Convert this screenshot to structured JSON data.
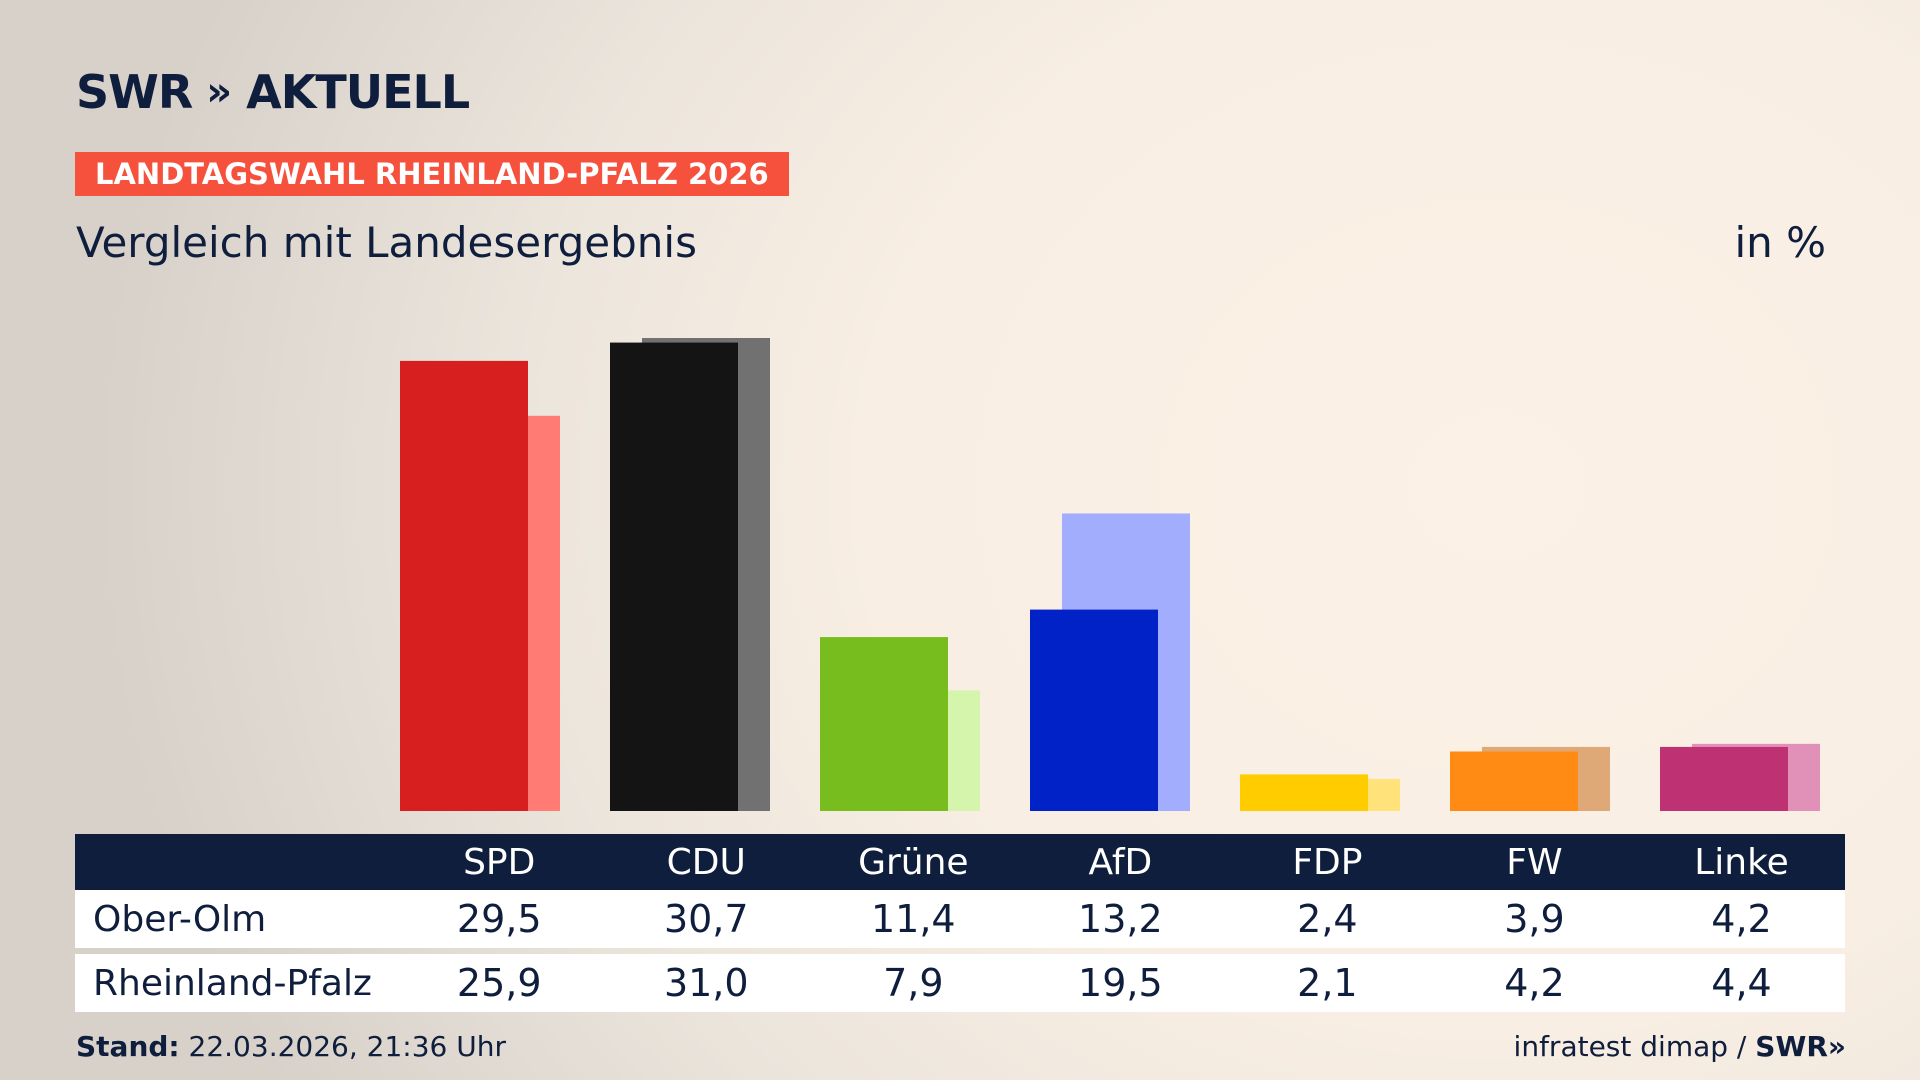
{
  "header": {
    "logo_text": "SWR",
    "logo_chevrons": "»",
    "logo_brand": "AKTUELL",
    "banner": "LANDTAGSWAHL RHEINLAND-PFALZ 2026",
    "subtitle": "Vergleich mit Landesergebnis",
    "unit": "in %"
  },
  "colors": {
    "banner": "#f5513d",
    "navy": "#0f1e3c"
  },
  "chart_data": {
    "type": "bar",
    "categories": [
      "SPD",
      "CDU",
      "Grüne",
      "AfD",
      "FDP",
      "FW",
      "Linke"
    ],
    "series": [
      {
        "name": "Ober-Olm",
        "values": [
          29.5,
          30.7,
          11.4,
          13.2,
          2.4,
          3.9,
          4.2
        ],
        "colors": [
          "#d71f1f",
          "#141414",
          "#78bd1e",
          "#0022c7",
          "#ffcc00",
          "#ff8b14",
          "#be3173"
        ]
      },
      {
        "name": "Rheinland-Pfalz",
        "values": [
          25.9,
          31.0,
          7.9,
          19.5,
          2.1,
          4.2,
          4.4
        ],
        "colors": [
          "#ff7b74",
          "#717171",
          "#d6f5ac",
          "#a2aefd",
          "#ffe37a",
          "#dfa877",
          "#e190b8"
        ]
      }
    ],
    "ylim": [
      0,
      31
    ]
  },
  "table": {
    "rows": [
      {
        "label": "Ober-Olm",
        "values": [
          "29,5",
          "30,7",
          "11,4",
          "13,2",
          "2,4",
          "3,9",
          "4,2"
        ]
      },
      {
        "label": "Rheinland-Pfalz",
        "values": [
          "25,9",
          "31,0",
          "7,9",
          "19,5",
          "2,1",
          "4,2",
          "4,4"
        ]
      }
    ]
  },
  "footer": {
    "stand_label": "Stand:",
    "stand_value": "22.03.2026, 21:36 Uhr",
    "source": "infratest dimap /",
    "source_brand": "SWR",
    "source_chevrons": "»"
  }
}
